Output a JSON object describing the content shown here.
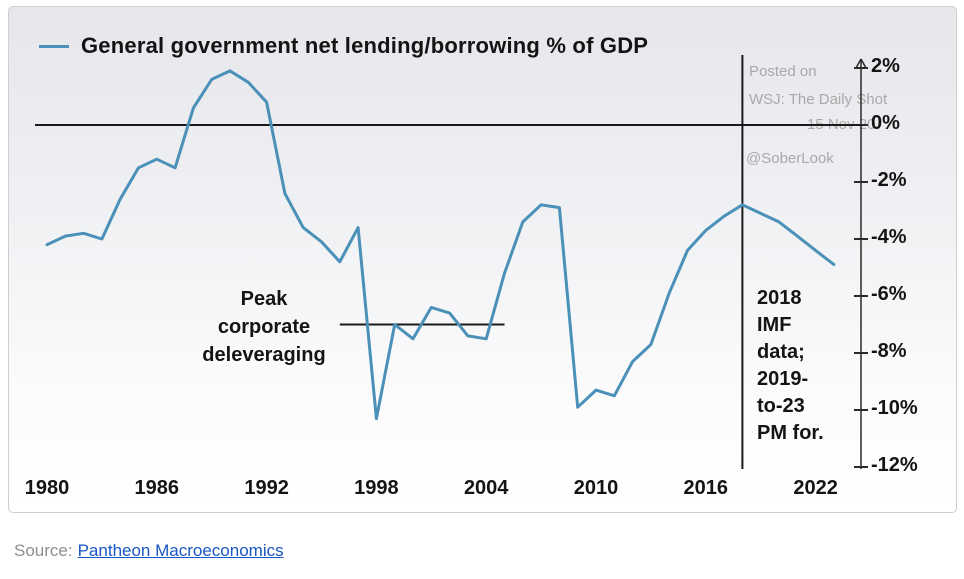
{
  "chart_data": {
    "type": "line",
    "title": "General government net lending/borrowing % of GDP",
    "series_color": "#4a90b8",
    "x": [
      1980,
      1981,
      1982,
      1983,
      1984,
      1985,
      1986,
      1987,
      1988,
      1989,
      1990,
      1991,
      1992,
      1993,
      1994,
      1995,
      1996,
      1997,
      1998,
      1999,
      2000,
      2001,
      2002,
      2003,
      2004,
      2005,
      2006,
      2007,
      2008,
      2009,
      2010,
      2011,
      2012,
      2013,
      2014,
      2015,
      2016,
      2017,
      2018,
      2019,
      2020,
      2021,
      2022,
      2023
    ],
    "values": [
      -4.2,
      -3.9,
      -3.8,
      -4.0,
      -2.6,
      -1.5,
      -1.2,
      -1.5,
      0.6,
      1.6,
      1.9,
      1.5,
      0.8,
      -2.4,
      -3.6,
      -4.1,
      -4.8,
      -3.6,
      -10.3,
      -7.0,
      -7.5,
      -6.4,
      -6.6,
      -7.4,
      -7.5,
      -5.2,
      -3.4,
      -2.8,
      -2.9,
      -9.9,
      -9.3,
      -9.5,
      -8.3,
      -7.7,
      -5.9,
      -4.4,
      -3.7,
      -3.2,
      -2.8,
      -3.1,
      -3.4,
      -3.9,
      -4.4,
      -4.9
    ],
    "x_ticks": [
      1980,
      1986,
      1992,
      1998,
      2004,
      2010,
      2016,
      2022
    ],
    "y_tick_labels": [
      "2%",
      "0%",
      "-2%",
      "-4%",
      "-6%",
      "-8%",
      "-10%",
      "-12%"
    ],
    "y_tick_values": [
      2,
      0,
      -2,
      -4,
      -6,
      -8,
      -10,
      -12
    ],
    "ylim": [
      -12,
      2
    ],
    "xlim": [
      1979.5,
      2024
    ],
    "grid": false,
    "legend_position": "top-left",
    "zero_line_value": 0,
    "forecast_vline_year": 2018,
    "deleveraging_line": {
      "value": -7,
      "from_year": 1996,
      "to_year": 2005
    }
  },
  "annotations": {
    "peak": {
      "line1": "Peak",
      "line2": "corporate",
      "line3": "deleveraging"
    },
    "imf": {
      "line1": "2018",
      "line2": "IMF",
      "line3": "data;",
      "line4": "2019-",
      "line5": "to-23",
      "line6": "PM for."
    }
  },
  "watermark": {
    "posted": "Posted on",
    "source_name": "WSJ: The Daily Shot",
    "date": "15 Nov 20",
    "handle": "@SoberLook"
  },
  "footer": {
    "source_label": "Source:",
    "source_link": "Pantheon Macroeconomics"
  }
}
